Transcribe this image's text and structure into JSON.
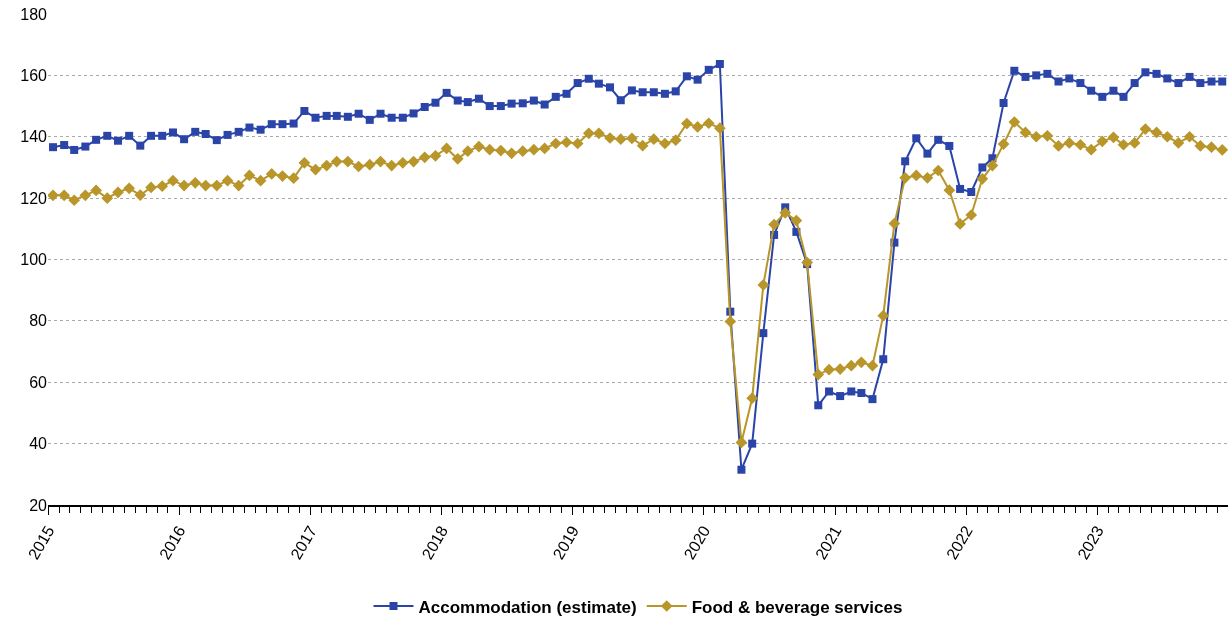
{
  "chart_data": {
    "type": "line",
    "x": [
      "2015-01-15",
      "2015-02-15",
      "2015-03-15",
      "2015-04-15",
      "2015-05-15",
      "2015-06-15",
      "2015-07-15",
      "2015-08-15",
      "2015-09-15",
      "2015-10-15",
      "2015-11-15",
      "2015-12-15",
      "2016-01-15",
      "2016-02-15",
      "2016-03-15",
      "2016-04-15",
      "2016-05-15",
      "2016-06-15",
      "2016-07-15",
      "2016-08-15",
      "2016-09-15",
      "2016-10-15",
      "2016-11-15",
      "2016-12-15",
      "2017-01-15",
      "2017-02-15",
      "2017-03-15",
      "2017-04-15",
      "2017-05-15",
      "2017-06-15",
      "2017-07-15",
      "2017-08-15",
      "2017-09-15",
      "2017-10-15",
      "2017-11-15",
      "2017-12-15",
      "2018-01-15",
      "2018-02-15",
      "2018-03-15",
      "2018-04-15",
      "2018-05-15",
      "2018-06-15",
      "2018-07-15",
      "2018-08-15",
      "2018-09-15",
      "2018-10-15",
      "2018-11-15",
      "2018-12-15",
      "2019-01-15",
      "2019-02-15",
      "2019-03-15",
      "2019-04-15",
      "2019-05-15",
      "2019-06-15",
      "2019-07-15",
      "2019-08-15",
      "2019-09-15",
      "2019-10-15",
      "2019-11-15",
      "2019-12-15",
      "2020-01-15",
      "2020-02-15",
      "2020-03-15",
      "2020-04-15",
      "2020-05-15",
      "2020-06-15",
      "2020-07-15",
      "2020-08-15",
      "2020-09-15",
      "2020-10-15",
      "2020-11-15",
      "2020-12-15",
      "2021-01-15",
      "2021-02-15",
      "2021-03-15",
      "2021-04-15",
      "2021-05-15",
      "2021-06-15",
      "2021-07-15",
      "2021-08-15",
      "2021-09-15",
      "2021-10-15",
      "2021-11-15",
      "2021-12-15",
      "2022-01-15",
      "2022-02-15",
      "2022-03-15",
      "2022-04-15",
      "2022-05-15",
      "2022-06-15",
      "2022-07-15",
      "2022-08-15",
      "2022-09-15",
      "2022-10-15",
      "2022-11-15",
      "2022-12-15",
      "2023-01-15",
      "2023-02-15",
      "2023-03-15",
      "2023-04-15",
      "2023-05-15",
      "2023-06-15",
      "2023-07-15",
      "2023-08-15",
      "2023-09-15",
      "2023-10-15",
      "2023-11-15",
      "2023-12-15"
    ],
    "series": [
      {
        "name": "Accommodation (estimate)",
        "color": "#2a44a8",
        "marker": "square",
        "values": [
          136.6,
          137.3,
          135.7,
          136.8,
          139,
          140.3,
          138.7,
          140.3,
          137.1,
          140.3,
          140.3,
          141.4,
          139.2,
          141.6,
          140.9,
          138.9,
          140.6,
          141.6,
          143,
          142.3,
          144.1,
          144.1,
          144.3,
          148.4,
          146.2,
          146.8,
          146.8,
          146.5,
          147.5,
          145.5,
          147.5,
          146.2,
          146.2,
          147.6,
          149.7,
          151.1,
          154.3,
          151.8,
          151.3,
          152.4,
          150,
          150,
          150.8,
          150.9,
          151.8,
          150.5,
          153,
          154,
          157.5,
          158.9,
          157.3,
          156.1,
          151.9,
          155.1,
          154.5,
          154.5,
          154,
          154.8,
          159.7,
          158.6,
          161.8,
          163.7,
          83,
          31.5,
          40,
          76,
          108,
          117,
          109,
          98.5,
          52.5,
          57,
          55.5,
          57,
          56.5,
          54.5,
          67.5,
          105.5,
          132,
          139.5,
          134.5,
          139,
          137,
          123,
          122,
          130,
          133,
          151,
          161.5,
          159.5,
          160,
          160.5,
          158,
          159,
          157.5,
          155,
          153,
          155,
          153,
          157.5,
          161,
          160.5,
          159,
          157.5,
          159.5,
          157.5,
          158,
          158
        ]
      },
      {
        "name": "Food & beverage services",
        "color": "#b8962a",
        "marker": "diamond",
        "values": [
          120.9,
          120.9,
          119.3,
          120.9,
          122.5,
          120,
          121.9,
          123.2,
          121,
          123.5,
          123.9,
          125.7,
          124.1,
          125,
          124.1,
          124.1,
          125.7,
          124.1,
          127.4,
          125.7,
          127.9,
          127.2,
          126.5,
          131.5,
          129.3,
          130.6,
          131.9,
          131.9,
          130.3,
          130.9,
          131.9,
          130.6,
          131.5,
          131.9,
          133.3,
          133.8,
          136.2,
          132.8,
          135.3,
          136.8,
          135.8,
          135.5,
          134.6,
          135.3,
          135.8,
          136.2,
          137.8,
          138.2,
          137.8,
          141.1,
          141.1,
          139.6,
          139.2,
          139.5,
          137.1,
          139.2,
          137.8,
          138.9,
          144.3,
          143.2,
          144.4,
          142.8,
          79.8,
          40.4,
          54.8,
          91.7,
          111.4,
          115.2,
          112.7,
          99,
          62.5,
          64.1,
          64.3,
          65.4,
          66.5,
          65.4,
          81.7,
          111.7,
          126.6,
          127.4,
          126.6,
          129,
          122.6,
          111.6,
          114.5,
          126.3,
          130.6,
          137.6,
          144.8,
          141.4,
          140,
          140.3,
          137,
          138,
          137.4,
          135.8,
          138.5,
          139.8,
          137.4,
          138,
          142.5,
          141.4,
          140,
          138,
          140,
          137,
          136.6,
          135.7
        ]
      }
    ],
    "xlim": [
      "2015-01-01",
      "2023-12-31"
    ],
    "xticks": [
      "2015",
      "2016",
      "2017",
      "2018",
      "2019",
      "2020",
      "2021",
      "2022",
      "2023"
    ],
    "ylim": [
      20,
      180
    ],
    "yticks": [
      20,
      40,
      60,
      80,
      100,
      120,
      140,
      160,
      180
    ],
    "grid": "y",
    "legend": "bottom",
    "line_style": "solid"
  }
}
